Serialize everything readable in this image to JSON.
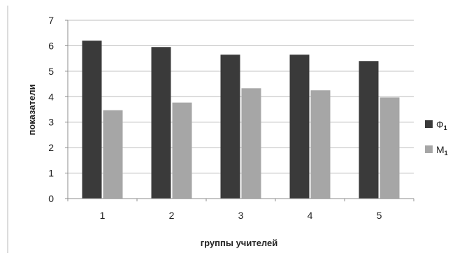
{
  "chart_data": {
    "type": "bar",
    "title": "",
    "xlabel": "группы учителей",
    "ylabel": "показатели",
    "categories": [
      "1",
      "2",
      "3",
      "4",
      "5"
    ],
    "ylim": [
      0,
      7
    ],
    "yticks": [
      0,
      1,
      2,
      3,
      4,
      5,
      6,
      7
    ],
    "grid": true,
    "legend_position": "right",
    "series": [
      {
        "name": "Ф",
        "subscript": "1",
        "color": "#3a3a3a",
        "values": [
          6.2,
          5.95,
          5.65,
          5.65,
          5.4
        ]
      },
      {
        "name": "М",
        "subscript": "1",
        "color": "#a6a6a6",
        "values": [
          3.47,
          3.77,
          4.33,
          4.25,
          3.97
        ]
      }
    ]
  }
}
